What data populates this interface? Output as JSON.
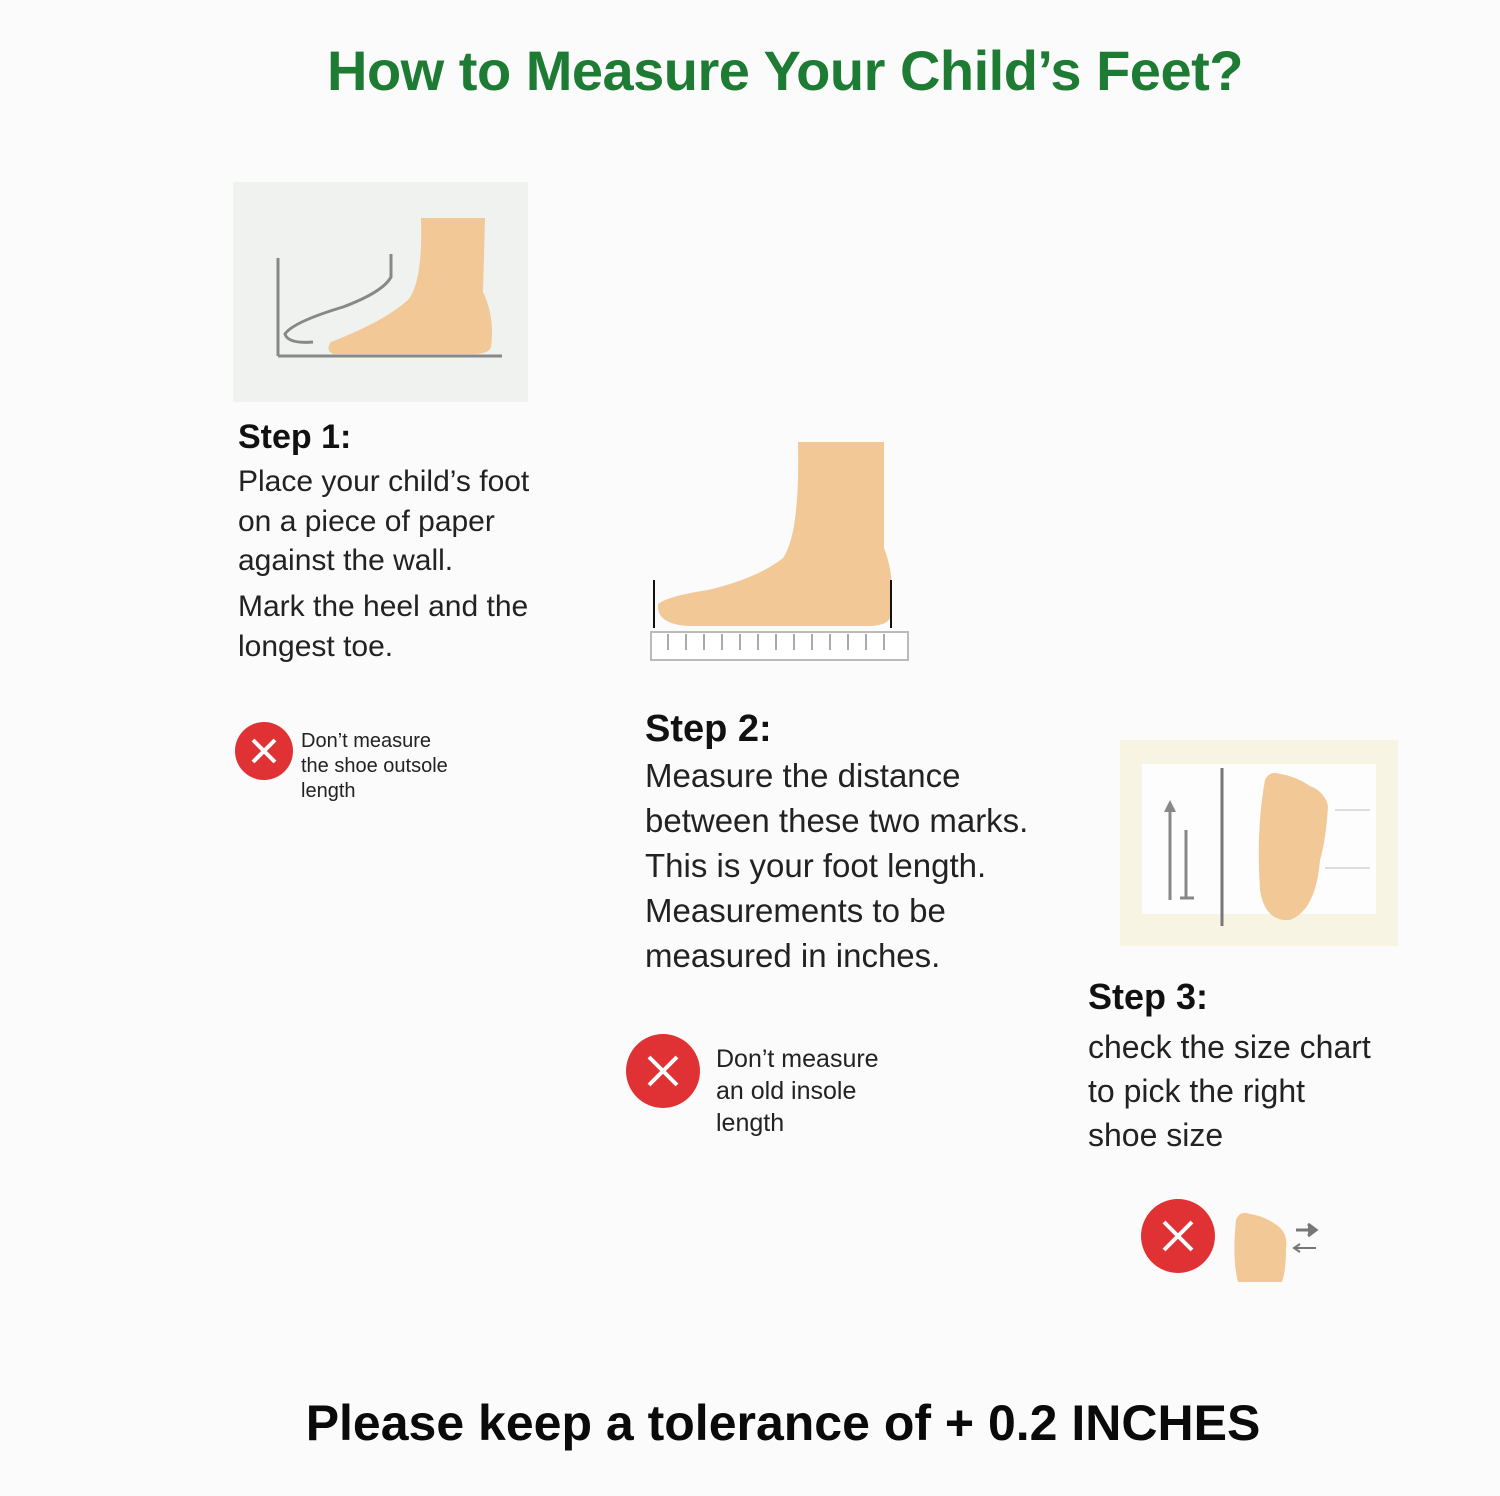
{
  "title": "How to Measure Your Child’s Feet?",
  "colors": {
    "title": "#1e7b34",
    "warning": "#e03234",
    "skin": "#f1c896"
  },
  "step1": {
    "heading": "Step 1:",
    "lines": [
      "Place your child’s foot",
      "on a piece of paper",
      "against the wall.",
      "Mark the heel and the",
      "longest toe."
    ],
    "warning": {
      "icon": "x-circle-icon",
      "lines": [
        "Don’t measure",
        "the shoe outsole",
        "length"
      ]
    }
  },
  "step2": {
    "heading": "Step 2:",
    "lines": [
      "Measure the distance",
      "between these two marks.",
      "This is your foot length.",
      "Measurements to be",
      "measured in inches."
    ],
    "warning": {
      "icon": "x-circle-icon",
      "lines": [
        "Don’t measure",
        "an old insole",
        "length"
      ]
    }
  },
  "step3": {
    "heading": "Step 3:",
    "lines": [
      "check the size chart",
      "to pick the right",
      "shoe size"
    ],
    "warning": {
      "icon": "x-circle-icon"
    }
  },
  "footer": "Please keep a tolerance of + 0.2 INCHES"
}
